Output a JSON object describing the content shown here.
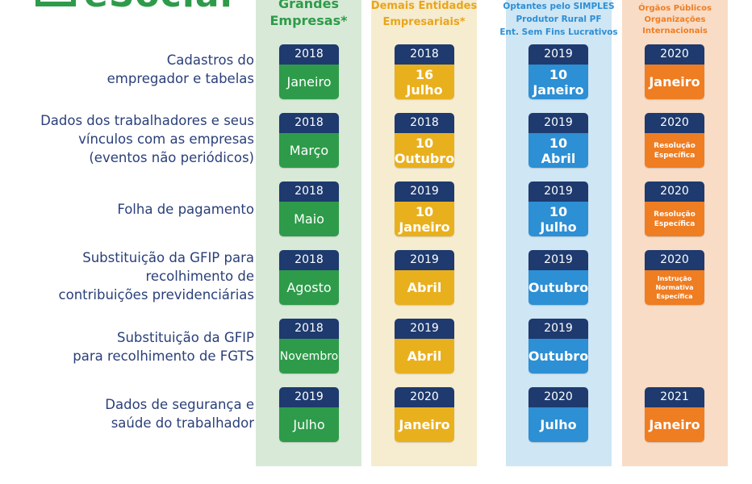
{
  "brand": "eSocial",
  "colors": {
    "grandes": "#2e9b4a",
    "demais": "#e9b01e",
    "simples": "#2d8fd4",
    "orgaos": "#ef7d22",
    "year_header": "#1e3a6e",
    "label_text": "#2a3f7a"
  },
  "columns": [
    {
      "header": [
        "Grandes",
        "Empresas*"
      ]
    },
    {
      "header": [
        "Demais Entidades",
        "Empresariais*"
      ]
    },
    {
      "header": [
        "Optantes pelo SIMPLES",
        "Produtor Rural PF",
        "Ent. Sem Fins Lucrativos"
      ]
    },
    {
      "header": [
        "Órgãos Públicos",
        "Organizações Internacionais"
      ]
    }
  ],
  "rows": [
    {
      "label": [
        "Cadastros do",
        "empregador e tabelas"
      ],
      "cells": [
        {
          "year": "2018",
          "value": [
            "Janeiro"
          ]
        },
        {
          "year": "2018",
          "value": [
            "16",
            "Julho"
          ]
        },
        {
          "year": "2019",
          "value": [
            "10",
            "Janeiro"
          ]
        },
        {
          "year": "2020",
          "value": [
            "Janeiro"
          ]
        }
      ]
    },
    {
      "label": [
        "Dados dos trabalhadores e seus",
        "vínculos com as empresas",
        "(eventos não periódicos)"
      ],
      "cells": [
        {
          "year": "2018",
          "value": [
            "Março"
          ]
        },
        {
          "year": "2018",
          "value": [
            "10",
            "Outubro"
          ]
        },
        {
          "year": "2019",
          "value": [
            "10",
            "Abril"
          ]
        },
        {
          "year": "2020",
          "value": [
            "Resolução",
            "Específica"
          ]
        }
      ]
    },
    {
      "label": [
        "Folha de pagamento"
      ],
      "cells": [
        {
          "year": "2018",
          "value": [
            "Maio"
          ]
        },
        {
          "year": "2019",
          "value": [
            "10",
            "Janeiro"
          ]
        },
        {
          "year": "2019",
          "value": [
            "10",
            "Julho"
          ]
        },
        {
          "year": "2020",
          "value": [
            "Resolução",
            "Específica"
          ]
        }
      ]
    },
    {
      "label": [
        "Substituição da GFIP para",
        "recolhimento de",
        "contribuições previdenciárias"
      ],
      "cells": [
        {
          "year": "2018",
          "value": [
            "Agosto"
          ]
        },
        {
          "year": "2019",
          "value": [
            "Abril"
          ]
        },
        {
          "year": "2019",
          "value": [
            "Outubro"
          ]
        },
        {
          "year": "2020",
          "value": [
            "Instrução",
            "Normativa",
            "Específica"
          ]
        }
      ]
    },
    {
      "label": [
        "Substituição da GFIP",
        "para recolhimento de FGTS"
      ],
      "cells": [
        {
          "year": "2018",
          "value": [
            "Novembro"
          ]
        },
        {
          "year": "2019",
          "value": [
            "Abril"
          ]
        },
        {
          "year": "2019",
          "value": [
            "Outubro"
          ]
        }
      ]
    },
    {
      "label": [
        "Dados de segurança e",
        "saúde do trabalhador"
      ],
      "cells": [
        {
          "year": "2019",
          "value": [
            "Julho"
          ]
        },
        {
          "year": "2020",
          "value": [
            "Janeiro"
          ]
        },
        {
          "year": "2020",
          "value": [
            "Julho"
          ]
        },
        {
          "year": "2021",
          "value": [
            "Janeiro"
          ]
        }
      ]
    }
  ]
}
